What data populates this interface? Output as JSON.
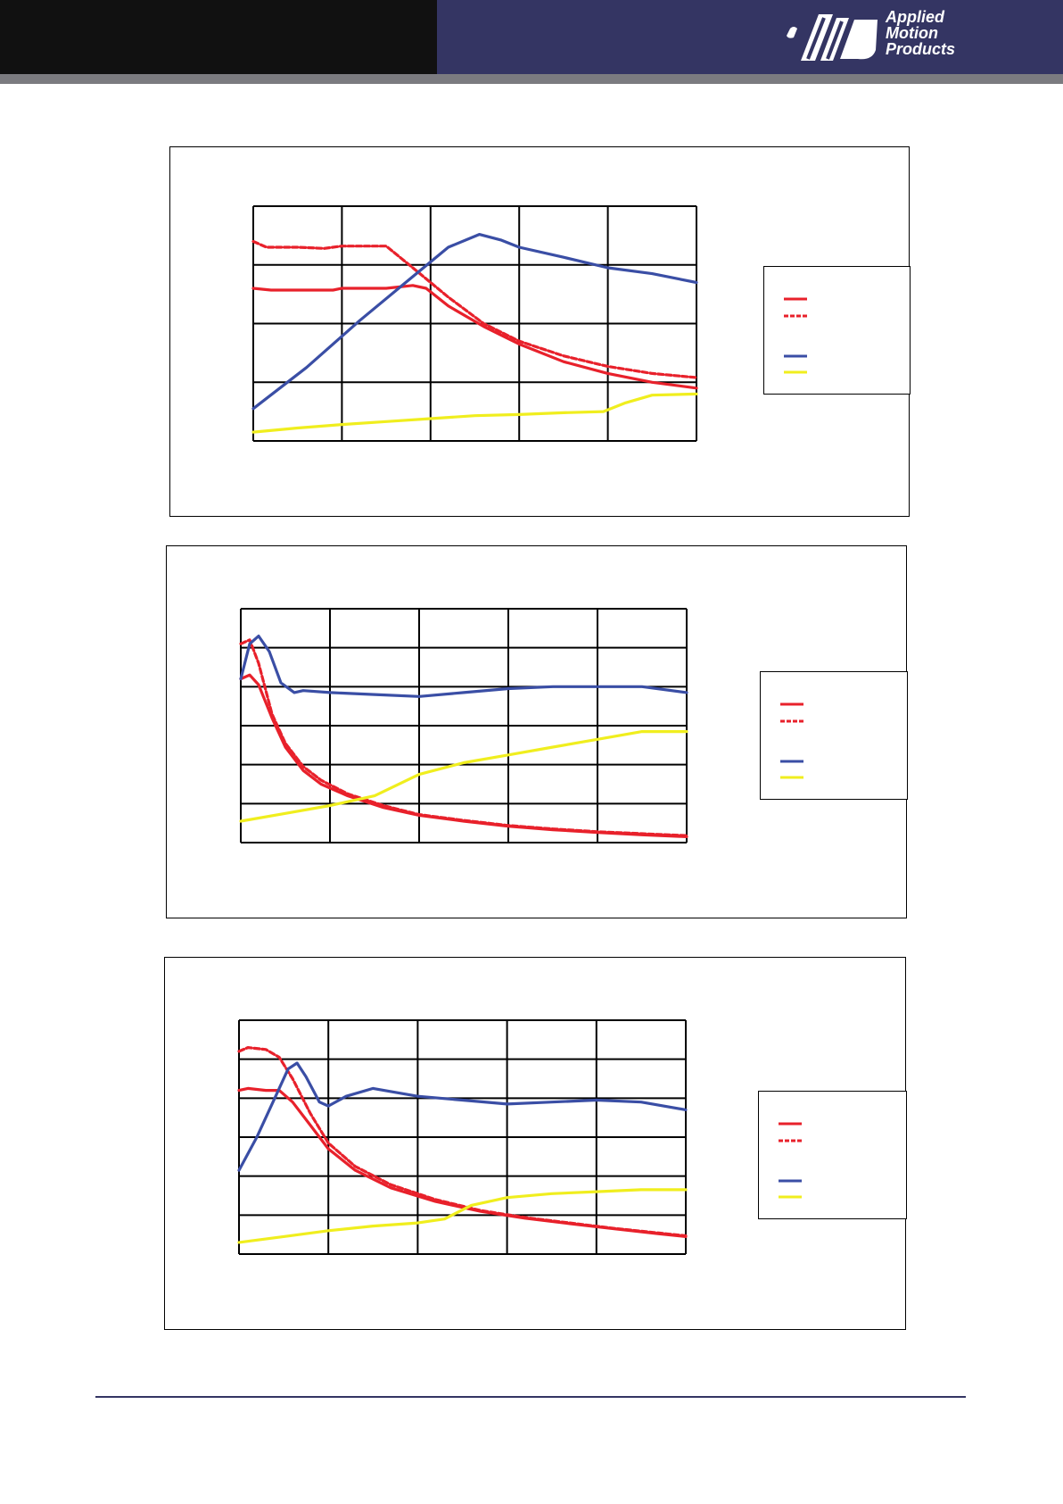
{
  "header": {
    "logo_lines": [
      "Applied",
      "Motion",
      "Products"
    ],
    "colors": {
      "left_band": "#111111",
      "right_band": "#343563",
      "strip": "#7b7b80",
      "footer_rule": "#343563"
    }
  },
  "chart_data": [
    {
      "type": "line",
      "title": "",
      "xlabel": "",
      "ylabel": "",
      "xlim": [
        0,
        5
      ],
      "ylim": [
        0,
        4
      ],
      "grid": true,
      "legend_position": "right",
      "series": [
        {
          "color": "#e8212b",
          "style": "solid",
          "points": [
            [
              0,
              2.6
            ],
            [
              0.2,
              2.57
            ],
            [
              0.5,
              2.57
            ],
            [
              0.9,
              2.57
            ],
            [
              1.0,
              2.6
            ],
            [
              1.5,
              2.6
            ],
            [
              1.8,
              2.65
            ],
            [
              1.95,
              2.6
            ],
            [
              2.2,
              2.3
            ],
            [
              2.6,
              1.95
            ],
            [
              3.0,
              1.65
            ],
            [
              3.5,
              1.35
            ],
            [
              4.0,
              1.15
            ],
            [
              4.5,
              1.0
            ],
            [
              5.0,
              0.9
            ]
          ]
        },
        {
          "color": "#e8212b",
          "style": "dashed",
          "points": [
            [
              0,
              3.4
            ],
            [
              0.15,
              3.3
            ],
            [
              0.5,
              3.3
            ],
            [
              0.8,
              3.28
            ],
            [
              1.0,
              3.32
            ],
            [
              1.5,
              3.32
            ],
            [
              1.8,
              2.95
            ],
            [
              2.2,
              2.45
            ],
            [
              2.6,
              2.0
            ],
            [
              3.0,
              1.7
            ],
            [
              3.5,
              1.45
            ],
            [
              4.0,
              1.27
            ],
            [
              4.5,
              1.15
            ],
            [
              5.0,
              1.08
            ]
          ]
        },
        {
          "color": "#3a4ea5",
          "style": "solid",
          "points": [
            [
              0,
              0.55
            ],
            [
              0.6,
              1.25
            ],
            [
              1.2,
              2.05
            ],
            [
              1.8,
              2.8
            ],
            [
              2.2,
              3.3
            ],
            [
              2.55,
              3.52
            ],
            [
              2.8,
              3.42
            ],
            [
              3.0,
              3.3
            ],
            [
              3.5,
              3.13
            ],
            [
              4.0,
              2.95
            ],
            [
              4.5,
              2.85
            ],
            [
              5.0,
              2.7
            ]
          ]
        },
        {
          "color": "#f0ee1e",
          "style": "solid",
          "points": [
            [
              0,
              0.15
            ],
            [
              0.5,
              0.22
            ],
            [
              1.0,
              0.28
            ],
            [
              1.5,
              0.33
            ],
            [
              2.0,
              0.38
            ],
            [
              2.5,
              0.43
            ],
            [
              3.0,
              0.45
            ],
            [
              3.5,
              0.48
            ],
            [
              3.95,
              0.5
            ],
            [
              4.2,
              0.65
            ],
            [
              4.5,
              0.78
            ],
            [
              5.0,
              0.8
            ]
          ]
        }
      ]
    },
    {
      "type": "line",
      "title": "",
      "xlabel": "",
      "ylabel": "",
      "xlim": [
        0,
        5
      ],
      "ylim": [
        0,
        6
      ],
      "grid": true,
      "legend_position": "right",
      "series": [
        {
          "color": "#e8212b",
          "style": "solid",
          "points": [
            [
              0,
              4.2
            ],
            [
              0.1,
              4.3
            ],
            [
              0.2,
              4.05
            ],
            [
              0.35,
              3.2
            ],
            [
              0.5,
              2.45
            ],
            [
              0.7,
              1.85
            ],
            [
              0.9,
              1.5
            ],
            [
              1.2,
              1.2
            ],
            [
              1.6,
              0.9
            ],
            [
              2.0,
              0.7
            ],
            [
              2.5,
              0.55
            ],
            [
              3.0,
              0.42
            ],
            [
              3.5,
              0.33
            ],
            [
              4.0,
              0.26
            ],
            [
              4.5,
              0.2
            ],
            [
              5.0,
              0.15
            ]
          ]
        },
        {
          "color": "#e8212b",
          "style": "dashed",
          "points": [
            [
              0,
              5.1
            ],
            [
              0.1,
              5.2
            ],
            [
              0.2,
              4.6
            ],
            [
              0.35,
              3.3
            ],
            [
              0.5,
              2.55
            ],
            [
              0.7,
              1.95
            ],
            [
              0.9,
              1.6
            ],
            [
              1.2,
              1.25
            ],
            [
              1.6,
              0.95
            ],
            [
              2.0,
              0.72
            ],
            [
              2.5,
              0.57
            ],
            [
              3.0,
              0.44
            ],
            [
              3.5,
              0.35
            ],
            [
              4.0,
              0.28
            ],
            [
              4.5,
              0.23
            ],
            [
              5.0,
              0.18
            ]
          ]
        },
        {
          "color": "#3a4ea5",
          "style": "solid",
          "points": [
            [
              0,
              4.2
            ],
            [
              0.1,
              5.1
            ],
            [
              0.2,
              5.3
            ],
            [
              0.32,
              4.9
            ],
            [
              0.45,
              4.1
            ],
            [
              0.6,
              3.85
            ],
            [
              0.7,
              3.9
            ],
            [
              1.0,
              3.85
            ],
            [
              1.5,
              3.8
            ],
            [
              2.0,
              3.75
            ],
            [
              2.5,
              3.85
            ],
            [
              3.0,
              3.95
            ],
            [
              3.5,
              4.0
            ],
            [
              4.0,
              4.0
            ],
            [
              4.5,
              4.0
            ],
            [
              5.0,
              3.85
            ]
          ]
        },
        {
          "color": "#f0ee1e",
          "style": "solid",
          "points": [
            [
              0,
              0.55
            ],
            [
              0.5,
              0.75
            ],
            [
              1.0,
              0.95
            ],
            [
              1.5,
              1.2
            ],
            [
              2.0,
              1.75
            ],
            [
              2.5,
              2.05
            ],
            [
              3.0,
              2.25
            ],
            [
              3.5,
              2.45
            ],
            [
              4.0,
              2.65
            ],
            [
              4.5,
              2.85
            ],
            [
              5.0,
              2.85
            ]
          ]
        }
      ]
    },
    {
      "type": "line",
      "title": "",
      "xlabel": "",
      "ylabel": "",
      "xlim": [
        0,
        5
      ],
      "ylim": [
        0,
        6
      ],
      "grid": true,
      "legend_position": "right",
      "series": [
        {
          "color": "#e8212b",
          "style": "solid",
          "points": [
            [
              0,
              4.2
            ],
            [
              0.1,
              4.25
            ],
            [
              0.3,
              4.2
            ],
            [
              0.45,
              4.2
            ],
            [
              0.6,
              3.9
            ],
            [
              0.8,
              3.3
            ],
            [
              1.0,
              2.7
            ],
            [
              1.3,
              2.15
            ],
            [
              1.7,
              1.7
            ],
            [
              2.2,
              1.35
            ],
            [
              2.7,
              1.1
            ],
            [
              3.2,
              0.92
            ],
            [
              3.7,
              0.78
            ],
            [
              4.2,
              0.65
            ],
            [
              4.7,
              0.52
            ],
            [
              5.0,
              0.45
            ]
          ]
        },
        {
          "color": "#e8212b",
          "style": "dashed",
          "points": [
            [
              0,
              5.2
            ],
            [
              0.1,
              5.3
            ],
            [
              0.3,
              5.25
            ],
            [
              0.45,
              5.05
            ],
            [
              0.6,
              4.5
            ],
            [
              0.8,
              3.6
            ],
            [
              1.0,
              2.85
            ],
            [
              1.3,
              2.25
            ],
            [
              1.7,
              1.78
            ],
            [
              2.2,
              1.4
            ],
            [
              2.7,
              1.12
            ],
            [
              3.2,
              0.94
            ],
            [
              3.7,
              0.8
            ],
            [
              4.2,
              0.66
            ],
            [
              4.7,
              0.54
            ],
            [
              5.0,
              0.47
            ]
          ]
        },
        {
          "color": "#3a4ea5",
          "style": "solid",
          "points": [
            [
              0,
              2.15
            ],
            [
              0.2,
              3.0
            ],
            [
              0.4,
              4.0
            ],
            [
              0.55,
              4.75
            ],
            [
              0.65,
              4.9
            ],
            [
              0.75,
              4.55
            ],
            [
              0.9,
              3.9
            ],
            [
              1.0,
              3.8
            ],
            [
              1.2,
              4.05
            ],
            [
              1.5,
              4.25
            ],
            [
              2.0,
              4.05
            ],
            [
              2.5,
              3.95
            ],
            [
              3.0,
              3.85
            ],
            [
              3.5,
              3.9
            ],
            [
              4.0,
              3.95
            ],
            [
              4.5,
              3.9
            ],
            [
              5.0,
              3.7
            ]
          ]
        },
        {
          "color": "#f0ee1e",
          "style": "solid",
          "points": [
            [
              0,
              0.3
            ],
            [
              0.5,
              0.45
            ],
            [
              1.0,
              0.6
            ],
            [
              1.5,
              0.72
            ],
            [
              2.0,
              0.8
            ],
            [
              2.3,
              0.9
            ],
            [
              2.6,
              1.25
            ],
            [
              3.0,
              1.45
            ],
            [
              3.5,
              1.55
            ],
            [
              4.0,
              1.6
            ],
            [
              4.5,
              1.65
            ],
            [
              5.0,
              1.65
            ]
          ]
        }
      ]
    }
  ]
}
